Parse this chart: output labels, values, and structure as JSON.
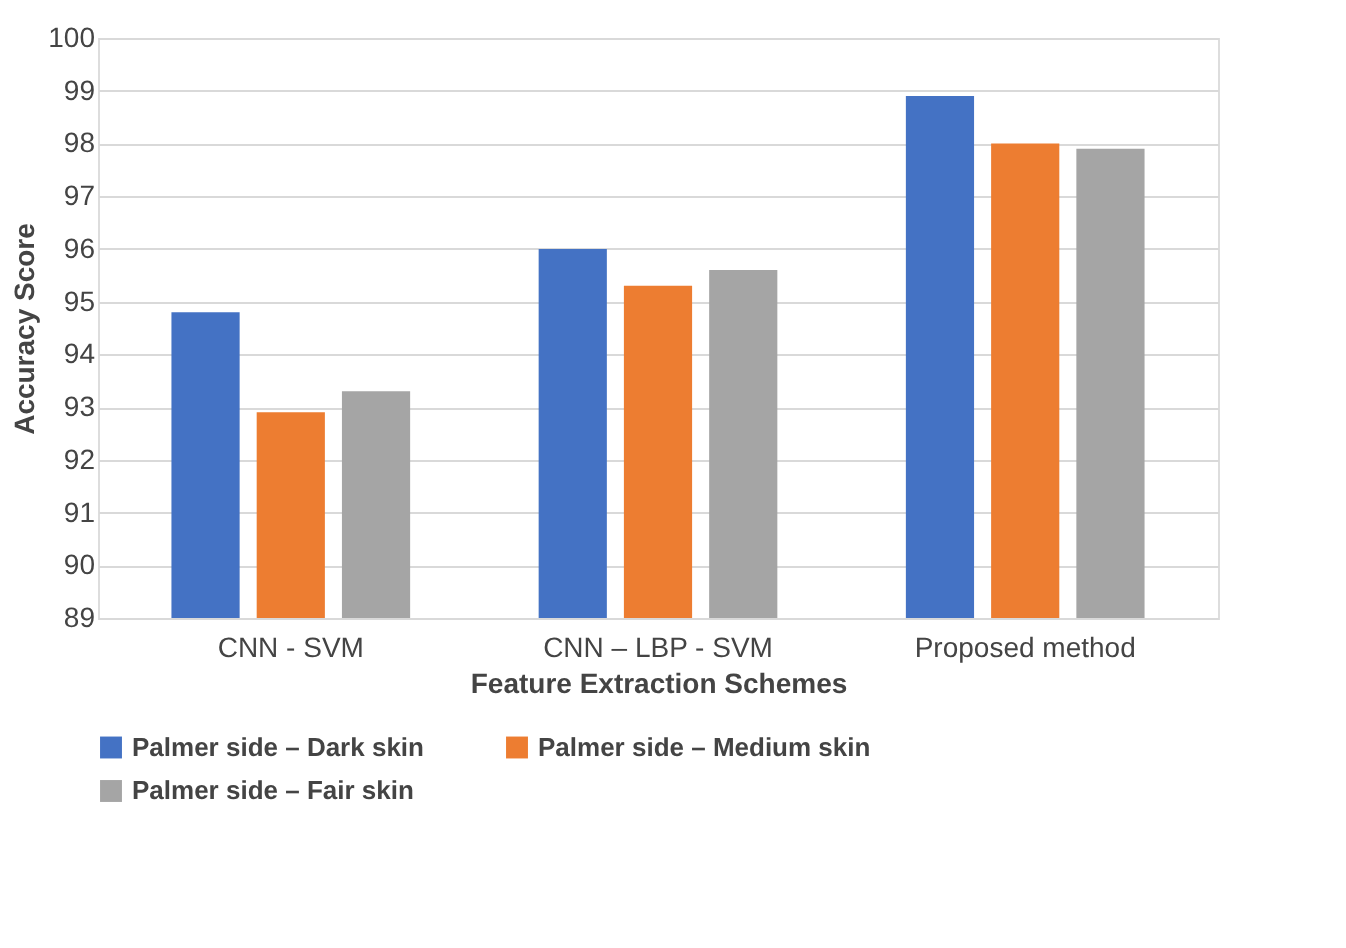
{
  "chart_data": {
    "type": "bar",
    "xlabel": "Feature Extraction Schemes",
    "ylabel": "Accuracy Score",
    "categories": [
      "CNN - SVM",
      "CNN – LBP - SVM",
      "Proposed method"
    ],
    "series": [
      {
        "name": "Palmer side – Dark skin",
        "color": "#4472c4",
        "values": [
          94.8,
          96.0,
          98.9
        ]
      },
      {
        "name": "Palmer side – Medium skin",
        "color": "#ed7d31",
        "values": [
          92.9,
          95.3,
          98.0
        ]
      },
      {
        "name": "Palmer side – Fair skin",
        "color": "#a5a5a5",
        "values": [
          93.3,
          95.6,
          97.9
        ]
      }
    ],
    "ylim": [
      89,
      100
    ],
    "yticks": [
      89,
      90,
      91,
      92,
      93,
      94,
      95,
      96,
      97,
      98,
      99,
      100
    ],
    "grid": "y",
    "legend": "bottom"
  }
}
